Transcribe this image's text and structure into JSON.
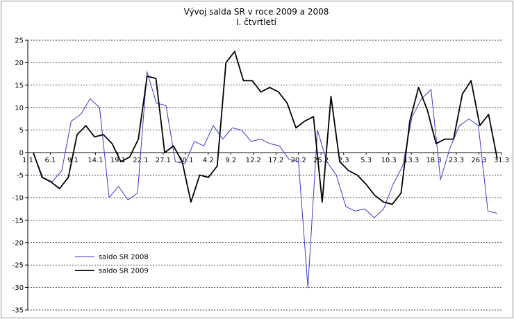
{
  "chart_data": {
    "type": "line",
    "title": "Vývoj salda SR v roce 2009 a 2008",
    "subtitle": "I. čtvrtletí",
    "ylim": [
      -35,
      25
    ],
    "y_ticks": [
      25,
      20,
      15,
      10,
      5,
      0,
      -5,
      -10,
      -15,
      -20,
      -25,
      -30,
      -35
    ],
    "x_tick_labels": [
      "1.1",
      "6.1",
      "9.1",
      "14.1",
      "19.1",
      "22.1",
      "27.1",
      "30.1",
      "4.2",
      "9.2",
      "12.2",
      "17.2",
      "20.2",
      "25.2",
      "2.3",
      "5.3",
      "10.3",
      "13.3",
      "18.3",
      "23.3",
      "26.3",
      "31.3"
    ],
    "grid": "horizontal dashed",
    "legend_position": "bottom-left",
    "series": [
      {
        "name": "saldo SR 2008",
        "color": "#3a3ac8",
        "values": [
          0,
          -5.5,
          -6.5,
          -4,
          7,
          8.5,
          12,
          10,
          -10,
          -7.5,
          -10.5,
          -9,
          18,
          11,
          10.5,
          -2,
          -2.5,
          2.5,
          1.5,
          6,
          3,
          5.5,
          5,
          2.5,
          3,
          2,
          1.5,
          -1.5,
          -2,
          -30,
          5,
          -2,
          -5,
          -12,
          -13,
          -12.5,
          -14.5,
          -12.5,
          -7,
          -3,
          8,
          12,
          14,
          -6,
          1,
          6,
          7.5,
          6,
          -13,
          -13.5
        ]
      },
      {
        "name": "saldo SR 2009",
        "color": "#000000",
        "values": [
          0,
          -5.5,
          -6.5,
          -8,
          -5.5,
          4,
          6,
          3.5,
          4,
          2,
          -2,
          -1,
          3,
          17,
          16.5,
          0,
          1.5,
          -2,
          -11,
          -5,
          -5.5,
          -3,
          20,
          22.5,
          16,
          16,
          13.5,
          14.5,
          13.5,
          11,
          5.5,
          7,
          8,
          -11,
          12.5,
          -2,
          -4,
          -5,
          -7,
          -9.5,
          -11,
          -11.5,
          -9,
          7,
          14.5,
          9.5,
          2,
          3,
          3,
          13,
          16,
          6,
          8.5,
          -1.5
        ]
      }
    ]
  }
}
